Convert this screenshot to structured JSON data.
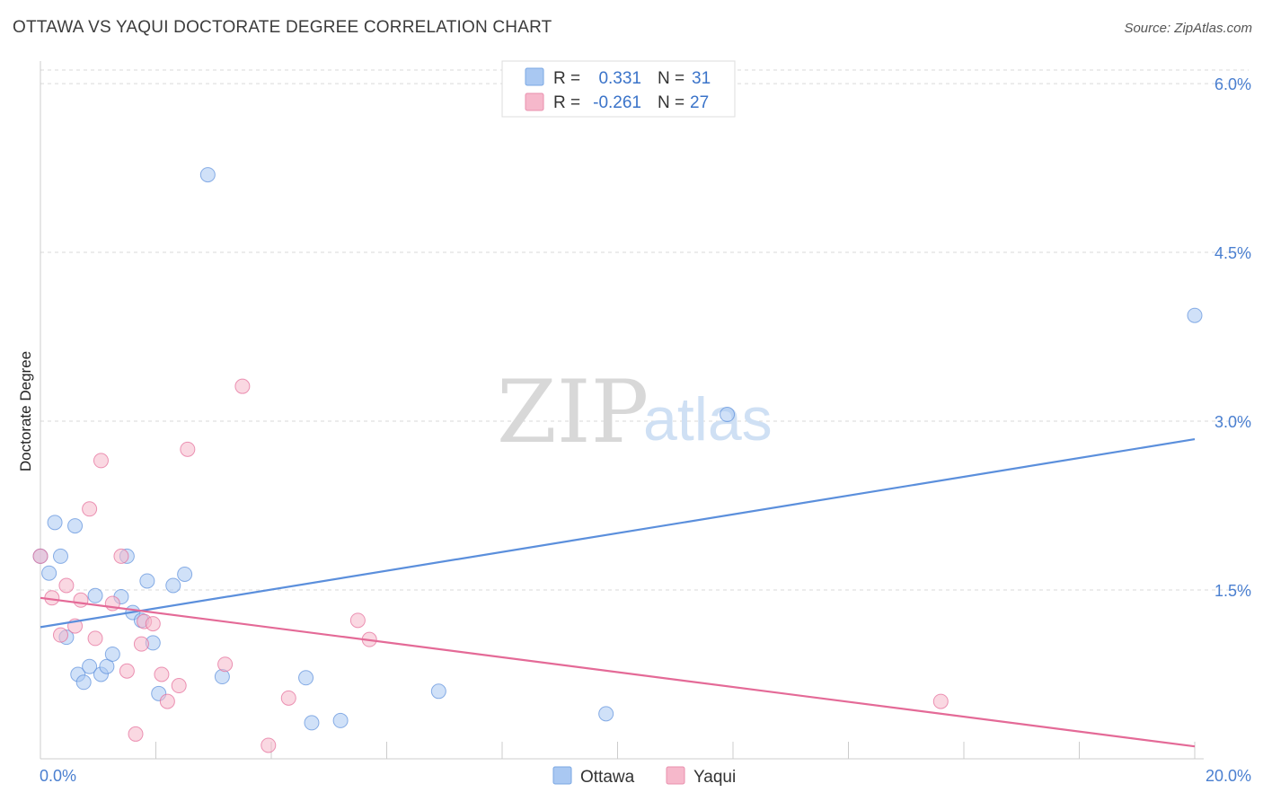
{
  "header": {
    "title": "OTTAWA VS YAQUI DOCTORATE DEGREE CORRELATION CHART",
    "source": "Source: ZipAtlas.com"
  },
  "watermark": {
    "part1": "ZIP",
    "part2": "atlas"
  },
  "legend": {
    "rows": [
      {
        "r_label": "R =",
        "r_value": "0.331",
        "n_label": "N =",
        "n_value": "31",
        "color": "#a9c8f2"
      },
      {
        "r_label": "R =",
        "r_value": "-0.261",
        "n_label": "N =",
        "n_value": "27",
        "color": "#f6b8cb"
      }
    ]
  },
  "bottom_legend": {
    "items": [
      {
        "label": "Ottawa",
        "color": "#a9c8f2"
      },
      {
        "label": "Yaqui",
        "color": "#f6b8cb"
      }
    ]
  },
  "chart_data": {
    "type": "scatter",
    "title": "OTTAWA VS YAQUI DOCTORATE DEGREE CORRELATION CHART",
    "xlabel": "",
    "ylabel": "Doctorate Degree",
    "xlim": [
      0,
      20
    ],
    "ylim": [
      0,
      6.2
    ],
    "x_tick_labels": [
      "0.0%",
      "20.0%"
    ],
    "y_ticks": [
      1.5,
      3.0,
      4.5,
      6.0
    ],
    "y_tick_labels": [
      "1.5%",
      "3.0%",
      "4.5%",
      "6.0%"
    ],
    "series": [
      {
        "name": "Ottawa",
        "color": "#5b8fdc",
        "fill": "#a9c8f2",
        "trend": {
          "x": [
            0,
            20
          ],
          "y": [
            1.17,
            2.84
          ]
        },
        "points": [
          {
            "x": 0.0,
            "y": 1.8
          },
          {
            "x": 0.15,
            "y": 1.65
          },
          {
            "x": 0.25,
            "y": 2.1
          },
          {
            "x": 0.35,
            "y": 1.8
          },
          {
            "x": 0.45,
            "y": 1.08
          },
          {
            "x": 0.6,
            "y": 2.07
          },
          {
            "x": 0.65,
            "y": 0.75
          },
          {
            "x": 0.75,
            "y": 0.68
          },
          {
            "x": 0.85,
            "y": 0.82
          },
          {
            "x": 0.95,
            "y": 1.45
          },
          {
            "x": 1.05,
            "y": 0.75
          },
          {
            "x": 1.15,
            "y": 0.82
          },
          {
            "x": 1.25,
            "y": 0.93
          },
          {
            "x": 1.4,
            "y": 1.44
          },
          {
            "x": 1.5,
            "y": 1.8
          },
          {
            "x": 1.6,
            "y": 1.3
          },
          {
            "x": 1.75,
            "y": 1.23
          },
          {
            "x": 1.85,
            "y": 1.58
          },
          {
            "x": 1.95,
            "y": 1.03
          },
          {
            "x": 2.05,
            "y": 0.58
          },
          {
            "x": 2.3,
            "y": 1.54
          },
          {
            "x": 2.5,
            "y": 1.64
          },
          {
            "x": 2.9,
            "y": 5.19
          },
          {
            "x": 3.15,
            "y": 0.73
          },
          {
            "x": 4.6,
            "y": 0.72
          },
          {
            "x": 4.7,
            "y": 0.32
          },
          {
            "x": 5.2,
            "y": 0.34
          },
          {
            "x": 6.9,
            "y": 0.6
          },
          {
            "x": 9.8,
            "y": 0.4
          },
          {
            "x": 11.9,
            "y": 3.06
          },
          {
            "x": 20.0,
            "y": 3.94
          }
        ]
      },
      {
        "name": "Yaqui",
        "color": "#e46a97",
        "fill": "#f6b8cb",
        "trend": {
          "x": [
            0,
            20
          ],
          "y": [
            1.43,
            0.11
          ]
        },
        "points": [
          {
            "x": 0.0,
            "y": 1.8
          },
          {
            "x": 0.2,
            "y": 1.43
          },
          {
            "x": 0.35,
            "y": 1.1
          },
          {
            "x": 0.45,
            "y": 1.54
          },
          {
            "x": 0.6,
            "y": 1.18
          },
          {
            "x": 0.7,
            "y": 1.41
          },
          {
            "x": 0.85,
            "y": 2.22
          },
          {
            "x": 0.95,
            "y": 1.07
          },
          {
            "x": 1.05,
            "y": 2.65
          },
          {
            "x": 1.25,
            "y": 1.38
          },
          {
            "x": 1.4,
            "y": 1.8
          },
          {
            "x": 1.5,
            "y": 0.78
          },
          {
            "x": 1.65,
            "y": 0.22
          },
          {
            "x": 1.75,
            "y": 1.02
          },
          {
            "x": 1.8,
            "y": 1.22
          },
          {
            "x": 1.95,
            "y": 1.2
          },
          {
            "x": 2.1,
            "y": 0.75
          },
          {
            "x": 2.2,
            "y": 0.51
          },
          {
            "x": 2.4,
            "y": 0.65
          },
          {
            "x": 2.55,
            "y": 2.75
          },
          {
            "x": 3.2,
            "y": 0.84
          },
          {
            "x": 3.5,
            "y": 3.31
          },
          {
            "x": 3.95,
            "y": 0.12
          },
          {
            "x": 4.3,
            "y": 0.54
          },
          {
            "x": 5.5,
            "y": 1.23
          },
          {
            "x": 5.7,
            "y": 1.06
          },
          {
            "x": 15.6,
            "y": 0.51
          }
        ]
      }
    ]
  }
}
